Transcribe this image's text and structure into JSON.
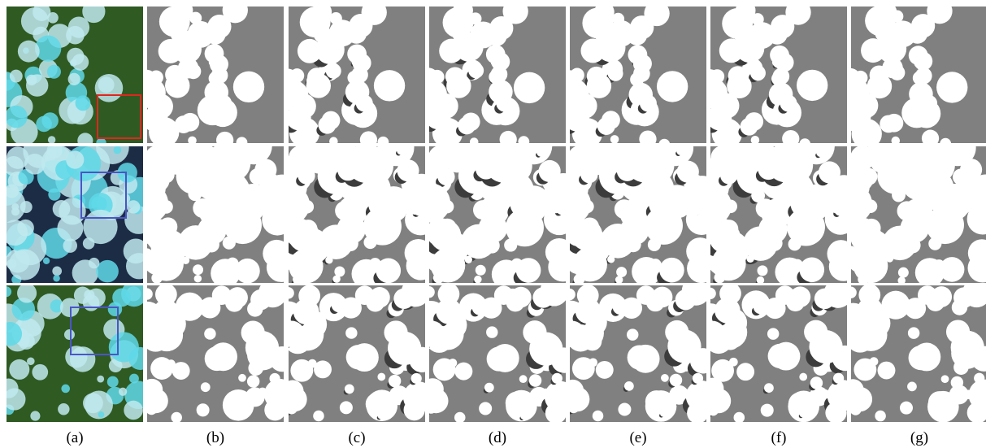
{
  "labels": [
    "(a)",
    "(b)",
    "(c)",
    "(d)",
    "(e)",
    "(f)",
    "(g)"
  ]
}
